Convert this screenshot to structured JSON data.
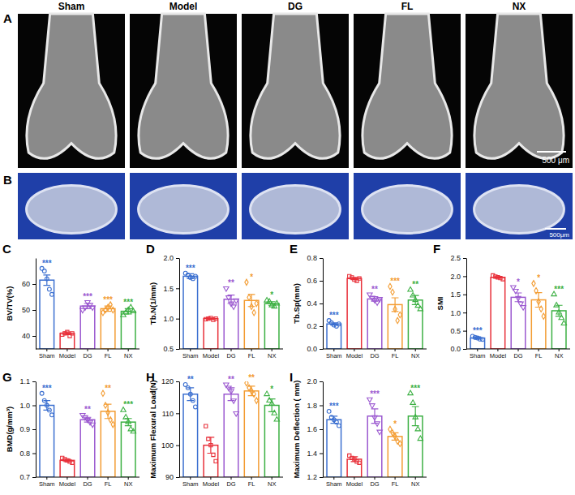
{
  "images": {
    "A": {
      "letter": "A",
      "labels": [
        "Sham",
        "Model",
        "DG",
        "FL",
        "NX"
      ],
      "scale_bar": "500 μm"
    },
    "B": {
      "letter": "B",
      "scale_bar": "500μm"
    }
  },
  "chart_data": [
    {
      "type": "bar",
      "letter": "C",
      "y_label": "BV/TV(%)",
      "categories": [
        "Sham",
        "Model",
        "DG",
        "FL",
        "NX"
      ],
      "colors": [
        "#3b6fd0",
        "#e8303a",
        "#9b59d0",
        "#f39c32",
        "#3cb043"
      ],
      "values": [
        61.5,
        41,
        51.5,
        50.5,
        49.5
      ],
      "errors": [
        2,
        0.5,
        1,
        1,
        1
      ],
      "points": [
        [
          66,
          65,
          62,
          58,
          56
        ],
        [
          40.5,
          41,
          41.5,
          40,
          41
        ],
        [
          50,
          51,
          53,
          52,
          51
        ],
        [
          49,
          50,
          51,
          52,
          50
        ],
        [
          48,
          49,
          50,
          51,
          49.5
        ]
      ],
      "annotations": [
        "***",
        null,
        "***",
        "***",
        "***"
      ],
      "ylim": [
        35,
        70
      ],
      "yticks": [
        40,
        50,
        60
      ]
    },
    {
      "type": "bar",
      "letter": "D",
      "y_label": "Tb.N(1/mm)",
      "categories": [
        "Sham",
        "Model",
        "DG",
        "FL",
        "NX"
      ],
      "colors": [
        "#3b6fd0",
        "#e8303a",
        "#9b59d0",
        "#f39c32",
        "#3cb043"
      ],
      "values": [
        1.7,
        1.0,
        1.32,
        1.3,
        1.25
      ],
      "errors": [
        0.04,
        0.01,
        0.07,
        0.1,
        0.03
      ],
      "points": [
        [
          1.75,
          1.72,
          1.68,
          1.66,
          1.7
        ],
        [
          0.99,
          1.0,
          1.01,
          0.98,
          1.0
        ],
        [
          1.5,
          1.35,
          1.25,
          1.2,
          1.3
        ],
        [
          1.6,
          1.35,
          1.2,
          1.1,
          1.25
        ],
        [
          1.3,
          1.28,
          1.22,
          1.2,
          1.25
        ]
      ],
      "annotations": [
        "***",
        null,
        "**",
        "*",
        "*"
      ],
      "ylim": [
        0.5,
        2.0
      ],
      "yticks": [
        0.5,
        {
          "value": 1,
          "label": "1.0"
        },
        1.5,
        {
          "value": 2,
          "label": "2.0"
        }
      ]
    },
    {
      "type": "bar",
      "letter": "E",
      "y_label": "Tb.Sp(mm)",
      "categories": [
        "Sham",
        "Model",
        "DG",
        "FL",
        "NX"
      ],
      "colors": [
        "#3b6fd0",
        "#e8303a",
        "#9b59d0",
        "#f39c32",
        "#3cb043"
      ],
      "values": [
        0.22,
        0.62,
        0.44,
        0.39,
        0.43
      ],
      "errors": [
        0.01,
        0.01,
        0.02,
        0.06,
        0.04
      ],
      "points": [
        [
          0.25,
          0.23,
          0.21,
          0.2,
          0.22
        ],
        [
          0.64,
          0.63,
          0.61,
          0.6,
          0.62
        ],
        [
          0.48,
          0.45,
          0.43,
          0.41,
          0.44
        ],
        [
          0.55,
          0.5,
          0.35,
          0.25,
          0.3
        ],
        [
          0.52,
          0.47,
          0.43,
          0.38,
          0.35
        ]
      ],
      "annotations": [
        "***",
        null,
        "**",
        "***",
        "**"
      ],
      "ylim": [
        0,
        0.8
      ],
      "yticks": [
        {
          "value": 0,
          "label": "0.0"
        },
        0.2,
        0.4,
        0.6,
        0.8
      ]
    },
    {
      "type": "bar",
      "letter": "F",
      "y_label": "SMI",
      "categories": [
        "Sham",
        "Model",
        "DG",
        "FL",
        "NX"
      ],
      "colors": [
        "#3b6fd0",
        "#e8303a",
        "#9b59d0",
        "#f39c32",
        "#3cb043"
      ],
      "values": [
        0.3,
        1.97,
        1.42,
        1.35,
        1.05
      ],
      "errors": [
        0.03,
        0.02,
        0.12,
        0.2,
        0.15
      ],
      "points": [
        [
          0.35,
          0.32,
          0.3,
          0.27,
          0.26
        ],
        [
          2.02,
          1.99,
          1.97,
          1.95,
          1.92
        ],
        [
          1.7,
          1.6,
          1.4,
          1.25,
          1.15
        ],
        [
          1.8,
          1.6,
          1.3,
          1.1,
          0.9
        ],
        [
          1.5,
          1.2,
          1.0,
          0.85,
          0.7
        ]
      ],
      "annotations": [
        "***",
        null,
        "*",
        "*",
        "***"
      ],
      "ylim": [
        0,
        2.5
      ],
      "yticks": [
        {
          "value": 0,
          "label": "0.0"
        },
        0.5,
        {
          "value": 1,
          "label": "1.0"
        },
        1.5,
        {
          "value": 2,
          "label": "2.0"
        },
        2.5
      ]
    },
    {
      "type": "bar",
      "letter": "G",
      "y_label": "BMD(g/mm³)",
      "categories": [
        "Sham",
        "Model",
        "DG",
        "FL",
        "NX"
      ],
      "colors": [
        "#3b6fd0",
        "#e8303a",
        "#9b59d0",
        "#f39c32",
        "#3cb043"
      ],
      "values": [
        1.0,
        0.77,
        0.94,
        0.975,
        0.93
      ],
      "errors": [
        0.02,
        0.005,
        0.01,
        0.03,
        0.015
      ],
      "points": [
        [
          1.05,
          1.02,
          1.0,
          0.98,
          0.96
        ],
        [
          0.78,
          0.775,
          0.77,
          0.765,
          0.76
        ],
        [
          0.96,
          0.95,
          0.94,
          0.93,
          0.92
        ],
        [
          1.05,
          1.0,
          0.97,
          0.94,
          0.92
        ],
        [
          0.98,
          0.95,
          0.93,
          0.9,
          0.89
        ]
      ],
      "annotations": [
        "***",
        null,
        "**",
        "**",
        "***"
      ],
      "ylim": [
        0.7,
        1.1
      ],
      "yticks": [
        0.7,
        0.8,
        0.9,
        {
          "value": 1,
          "label": "1.0"
        },
        1.1
      ]
    },
    {
      "type": "bar",
      "letter": "H",
      "y_label": "Maximum Flexural Load(N)",
      "categories": [
        "Sham",
        "Model",
        "DG",
        "FL",
        "NX"
      ],
      "colors": [
        "#3b6fd0",
        "#e8303a",
        "#9b59d0",
        "#f39c32",
        "#3cb043"
      ],
      "values": [
        116,
        100,
        116,
        117,
        112.5
      ],
      "errors": [
        2,
        2.5,
        2,
        1.5,
        2
      ],
      "points": [
        [
          119,
          118,
          116,
          114,
          112
        ],
        [
          106,
          102,
          100,
          97,
          95
        ],
        [
          119,
          118,
          117,
          114,
          110
        ],
        [
          119.5,
          118,
          117,
          116,
          114
        ],
        [
          116,
          114,
          113,
          110,
          108
        ]
      ],
      "annotations": [
        "**",
        null,
        "**",
        "**",
        "*"
      ],
      "ylim": [
        90,
        120
      ],
      "yticks": [
        90,
        100,
        110,
        120
      ]
    },
    {
      "type": "bar",
      "letter": "I",
      "y_label": "Maximum Deflection ( mm)",
      "categories": [
        "Sham",
        "Model",
        "DG",
        "FL",
        "NX"
      ],
      "colors": [
        "#3b6fd0",
        "#e8303a",
        "#9b59d0",
        "#f39c32",
        "#3cb043"
      ],
      "values": [
        1.68,
        1.35,
        1.71,
        1.54,
        1.71
      ],
      "errors": [
        0.03,
        0.02,
        0.06,
        0.03,
        0.08
      ],
      "points": [
        [
          1.75,
          1.7,
          1.68,
          1.66,
          1.63
        ],
        [
          1.38,
          1.36,
          1.35,
          1.33,
          1.32
        ],
        [
          1.85,
          1.8,
          1.7,
          1.65,
          1.58
        ],
        [
          1.6,
          1.57,
          1.54,
          1.5,
          1.48
        ],
        [
          1.9,
          1.82,
          1.7,
          1.6,
          1.52
        ]
      ],
      "annotations": [
        "***",
        null,
        "***",
        "*",
        "***"
      ],
      "ylim": [
        1.2,
        2.0
      ],
      "yticks": [
        1.2,
        1.4,
        1.6,
        1.8,
        {
          "value": 2,
          "label": "2.0"
        }
      ]
    }
  ]
}
